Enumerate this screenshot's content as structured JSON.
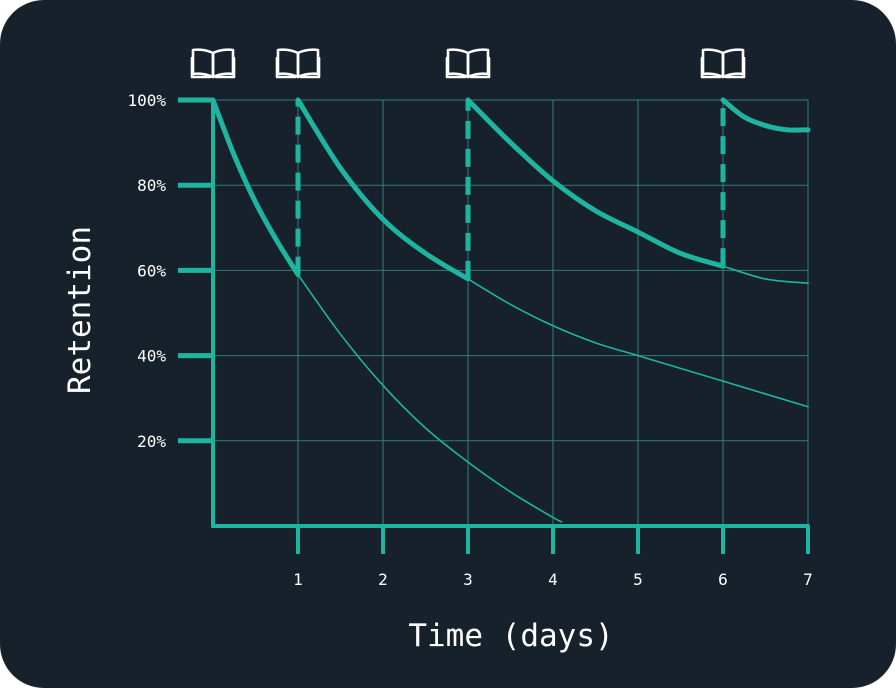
{
  "chart_data": {
    "type": "line",
    "title": "",
    "xlabel": "Time (days)",
    "ylabel": "Retention",
    "xlim": [
      0,
      7
    ],
    "ylim": [
      0,
      100
    ],
    "x_ticks": [
      1,
      2,
      3,
      4,
      5,
      6,
      7
    ],
    "x_tick_labels": [
      "1",
      "2",
      "3",
      "4",
      "5",
      "6",
      "7"
    ],
    "y_ticks": [
      20,
      40,
      60,
      80,
      100
    ],
    "y_tick_labels": [
      "20%",
      "40%",
      "60%",
      "80%",
      "100%"
    ],
    "grid": true,
    "review_days": [
      0,
      1,
      3,
      6
    ],
    "review_icon": "open-book-icon",
    "series": [
      {
        "style": "bold",
        "x": [
          0,
          0.25,
          0.5,
          0.75,
          1
        ],
        "y": [
          100,
          87,
          76,
          67,
          59
        ]
      },
      {
        "style": "bold",
        "x": [
          1,
          1.5,
          2,
          2.5,
          3
        ],
        "y": [
          100,
          84,
          72,
          64,
          58
        ]
      },
      {
        "style": "bold",
        "x": [
          3,
          3.5,
          4,
          4.5,
          5,
          5.5,
          6
        ],
        "y": [
          100,
          90,
          81,
          74,
          69,
          64,
          61
        ]
      },
      {
        "style": "bold",
        "x": [
          6,
          6.25,
          6.5,
          6.75,
          7
        ],
        "y": [
          100,
          96,
          94,
          93,
          93
        ]
      },
      {
        "style": "thin",
        "x": [
          1,
          1.5,
          2,
          2.5,
          3,
          3.5,
          4,
          4.1
        ],
        "y": [
          59,
          45,
          33,
          23,
          15,
          8,
          2,
          1
        ]
      },
      {
        "style": "thin",
        "x": [
          3,
          3.5,
          4,
          4.5,
          5,
          5.5,
          6,
          6.5,
          7
        ],
        "y": [
          58,
          52,
          47,
          43,
          40,
          37,
          34,
          31,
          28
        ]
      },
      {
        "style": "thin",
        "x": [
          6,
          6.5,
          7
        ],
        "y": [
          61,
          58,
          57
        ]
      }
    ],
    "colors": {
      "background": "#17212b",
      "accent": "#1db4a0",
      "grid": "#2f7f78",
      "text": "#ffffff"
    }
  }
}
